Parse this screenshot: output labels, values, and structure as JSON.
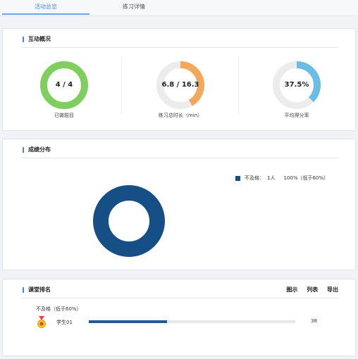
{
  "tabs": [
    {
      "label": "活动总览",
      "active": true
    },
    {
      "label": "练习详情",
      "active": false
    }
  ],
  "overview": {
    "title": "互动概况",
    "stats": [
      {
        "value": "4 / 4",
        "caption": "已做题目",
        "fraction": 1.0,
        "color": "#7fcf5e"
      },
      {
        "value": "6.8 / 16.3",
        "caption": "练习总时长（min）",
        "fraction": 0.417,
        "color": "#f3a95b"
      },
      {
        "value": "37.5%",
        "caption": "平均得分率",
        "fraction": 0.375,
        "color": "#6cbde6"
      }
    ],
    "track_color": "#ececec"
  },
  "distribution": {
    "title": "成绩分布",
    "legend": [
      {
        "name": "不及格",
        "count": "1人",
        "percent": "100%（低于60%）",
        "color": "#164f86"
      }
    ]
  },
  "chart_data": {
    "type": "pie",
    "title": "成绩分布",
    "labels": [
      "不及格"
    ],
    "values": [
      1
    ],
    "percents": [
      100
    ],
    "colors": [
      "#164f86"
    ],
    "legend_position": "top-right"
  },
  "ranking": {
    "title": "课堂排名",
    "actions": [
      "图示",
      "列表",
      "导出"
    ],
    "group_label": "不及格（低于60%）",
    "students": [
      {
        "rank_icon": "medal-icon",
        "name": "学生01",
        "score": "38",
        "fraction": 0.38
      }
    ]
  }
}
